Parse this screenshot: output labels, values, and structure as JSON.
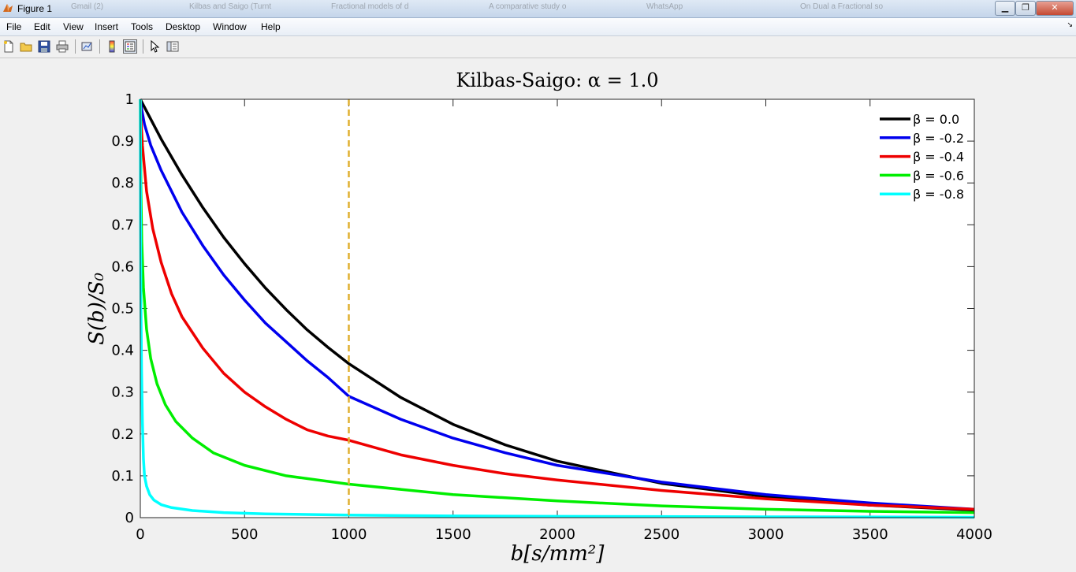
{
  "window": {
    "title": "Figure 1",
    "background_tabs": [
      "Gmail (2)",
      "Kilbas and Saigo (Turnt",
      "Fractional models of d",
      "A comparative study o",
      "WhatsApp",
      "On Dual a Fractional so"
    ],
    "buttons": {
      "minimize": "▁",
      "restore": "❐",
      "close": "✕"
    }
  },
  "menubar": {
    "items": [
      "File",
      "Edit",
      "View",
      "Insert",
      "Tools",
      "Desktop",
      "Window",
      "Help"
    ],
    "overflow": "↘"
  },
  "toolbar": {
    "icons": [
      "new-figure-icon",
      "open-file-icon",
      "save-icon",
      "print-icon",
      "link-plot-icon",
      "colorbar-icon",
      "legend-icon",
      "edit-plot-pointer-icon",
      "property-editor-icon"
    ]
  },
  "colors": {
    "black": "#000000",
    "blue": "#0000ee",
    "red": "#ee0000",
    "green": "#00ee00",
    "cyan": "#00ffff",
    "marker": "#e0b030"
  },
  "chart_data": {
    "type": "line",
    "title": "Kilbas-Saigo: α = 1.0",
    "xlabel": "b[s/mm²]",
    "ylabel": "S(b)/S₀",
    "xlim": [
      0,
      4000
    ],
    "ylim": [
      0,
      1
    ],
    "xticks": [
      "0",
      "500",
      "1000",
      "1500",
      "2000",
      "2500",
      "3000",
      "3500",
      "4000"
    ],
    "yticks": [
      "0",
      "0.1",
      "0.2",
      "0.3",
      "0.4",
      "0.5",
      "0.6",
      "0.7",
      "0.8",
      "0.9",
      "1"
    ],
    "grid": false,
    "legend_position": "top-right",
    "vertical_marker": {
      "x": 1000,
      "style": "dashed"
    },
    "series": [
      {
        "name": "β = 0.0",
        "color": "#000000",
        "x": [
          0,
          100,
          200,
          300,
          400,
          500,
          600,
          700,
          800,
          900,
          1000,
          1250,
          1500,
          1750,
          2000,
          2500,
          3000,
          3500,
          4000
        ],
        "y": [
          1,
          0.905,
          0.819,
          0.741,
          0.67,
          0.607,
          0.549,
          0.497,
          0.449,
          0.407,
          0.368,
          0.287,
          0.223,
          0.174,
          0.135,
          0.082,
          0.05,
          0.03,
          0.018
        ]
      },
      {
        "name": "β = -0.2",
        "color": "#0000ee",
        "x": [
          0,
          5,
          20,
          50,
          100,
          200,
          300,
          400,
          500,
          600,
          700,
          800,
          900,
          1000,
          1250,
          1500,
          1750,
          2000,
          2500,
          3000,
          3500,
          4000
        ],
        "y": [
          1,
          0.98,
          0.94,
          0.89,
          0.83,
          0.73,
          0.65,
          0.58,
          0.52,
          0.465,
          0.42,
          0.375,
          0.335,
          0.29,
          0.235,
          0.19,
          0.155,
          0.125,
          0.085,
          0.055,
          0.035,
          0.02
        ]
      },
      {
        "name": "β = -0.4",
        "color": "#ee0000",
        "x": [
          0,
          2,
          10,
          30,
          60,
          100,
          150,
          200,
          300,
          400,
          500,
          600,
          700,
          800,
          900,
          1000,
          1250,
          1500,
          1750,
          2000,
          2500,
          3000,
          3500,
          4000
        ],
        "y": [
          1,
          0.96,
          0.89,
          0.78,
          0.69,
          0.61,
          0.535,
          0.48,
          0.405,
          0.345,
          0.3,
          0.265,
          0.235,
          0.21,
          0.195,
          0.185,
          0.15,
          0.125,
          0.105,
          0.09,
          0.065,
          0.045,
          0.03,
          0.02
        ]
      },
      {
        "name": "β = -0.6",
        "color": "#00ee00",
        "x": [
          0,
          1,
          3,
          7,
          15,
          30,
          50,
          80,
          120,
          170,
          250,
          350,
          500,
          700,
          1000,
          1500,
          2000,
          2500,
          3000,
          3500,
          4000
        ],
        "y": [
          1,
          0.9,
          0.78,
          0.66,
          0.55,
          0.45,
          0.38,
          0.32,
          0.27,
          0.23,
          0.19,
          0.155,
          0.125,
          0.1,
          0.08,
          0.055,
          0.04,
          0.028,
          0.02,
          0.015,
          0.012
        ]
      },
      {
        "name": "β = -0.8",
        "color": "#00ffff",
        "x": [
          0,
          1,
          3,
          6,
          10,
          15,
          20,
          30,
          45,
          65,
          100,
          150,
          250,
          400,
          600,
          1000,
          1500,
          2000,
          3000,
          4000
        ],
        "y": [
          1,
          0.72,
          0.5,
          0.35,
          0.23,
          0.14,
          0.1,
          0.075,
          0.055,
          0.042,
          0.031,
          0.024,
          0.017,
          0.012,
          0.009,
          0.006,
          0.004,
          0.003,
          0.002,
          0.001
        ]
      }
    ]
  }
}
